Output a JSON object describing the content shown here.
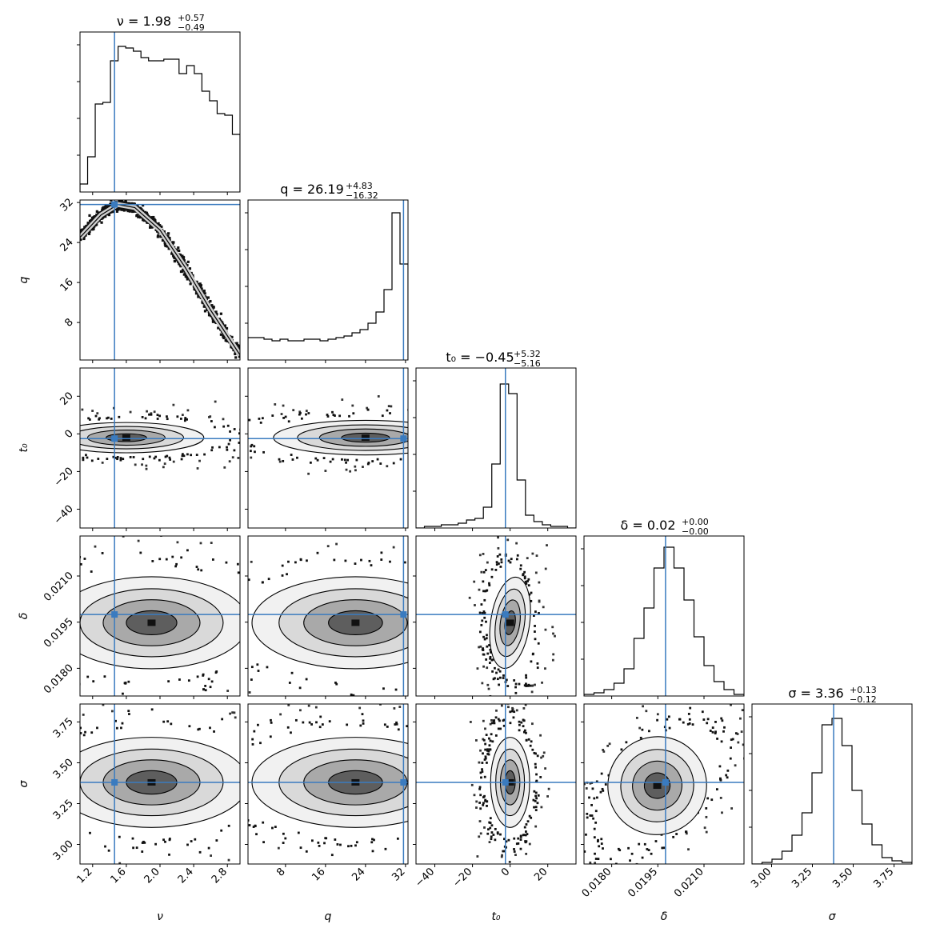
{
  "chart_data": {
    "type": "corner",
    "truth_color": "#3a7bbf",
    "parameters": [
      {
        "key": "nu",
        "symbol": "ν",
        "label": "ν",
        "range": [
          1.05,
          2.95
        ],
        "ticks": [
          1.2,
          1.6,
          2.0,
          2.4,
          2.8
        ],
        "tick_labels": [
          "1.2",
          "1.6",
          "2.0",
          "2.4",
          "2.8"
        ],
        "truth": 1.46,
        "title": {
          "lhs": "ν = 1.98",
          "plus": "+0.57",
          "minus": "−0.49"
        },
        "hist": [
          0.05,
          0.22,
          0.55,
          0.56,
          0.82,
          0.91,
          0.9,
          0.88,
          0.84,
          0.82,
          0.82,
          0.83,
          0.83,
          0.74,
          0.79,
          0.74,
          0.63,
          0.57,
          0.49,
          0.48,
          0.36
        ]
      },
      {
        "key": "q",
        "symbol": "q",
        "label": "q",
        "range": [
          0.5,
          32.5
        ],
        "ticks": [
          8,
          16,
          24,
          32
        ],
        "tick_labels": [
          "8",
          "16",
          "24",
          "32"
        ],
        "truth": 31.6,
        "title": {
          "lhs": "q = 26.19",
          "plus": "+4.83",
          "minus": "−16.32"
        },
        "hist": [
          0.14,
          0.14,
          0.13,
          0.12,
          0.13,
          0.12,
          0.12,
          0.13,
          0.13,
          0.12,
          0.13,
          0.14,
          0.15,
          0.17,
          0.19,
          0.23,
          0.3,
          0.44,
          0.92,
          0.6
        ]
      },
      {
        "key": "t0",
        "symbol": "t₀",
        "label": "t₀",
        "range": [
          -50,
          35
        ],
        "ticks": [
          -40,
          -20,
          0,
          20
        ],
        "tick_labels": [
          "−40",
          "−20",
          "0",
          "20"
        ],
        "truth": -2.5,
        "title": {
          "lhs": "t₀ = −0.45",
          "plus": "+5.32",
          "minus": "−5.16"
        },
        "hist": [
          0.0,
          0.01,
          0.01,
          0.02,
          0.02,
          0.03,
          0.05,
          0.06,
          0.13,
          0.4,
          0.9,
          0.84,
          0.3,
          0.08,
          0.04,
          0.02,
          0.01,
          0.01,
          0.0
        ]
      },
      {
        "key": "delta",
        "symbol": "δ",
        "label": "δ",
        "range": [
          0.0171,
          0.0223
        ],
        "ticks": [
          0.018,
          0.0195,
          0.021
        ],
        "tick_labels": [
          "0.0180",
          "0.0195",
          "0.0210"
        ],
        "truth": 0.01975,
        "title": {
          "lhs": "δ = 0.02",
          "plus": "+0.00",
          "minus": "−0.00"
        },
        "hist": [
          0.01,
          0.02,
          0.04,
          0.08,
          0.17,
          0.36,
          0.55,
          0.8,
          0.93,
          0.8,
          0.6,
          0.37,
          0.19,
          0.09,
          0.04,
          0.01
        ]
      },
      {
        "key": "sigma",
        "symbol": "σ",
        "label": "σ",
        "range": [
          2.88,
          3.86
        ],
        "ticks": [
          3.0,
          3.25,
          3.5,
          3.75
        ],
        "tick_labels": [
          "3.00",
          "3.25",
          "3.50",
          "3.75"
        ],
        "truth": 3.38,
        "title": {
          "lhs": "σ = 3.36",
          "plus": "+0.13",
          "minus": "−0.12"
        },
        "hist": [
          0.0,
          0.01,
          0.03,
          0.08,
          0.18,
          0.32,
          0.57,
          0.87,
          0.91,
          0.74,
          0.46,
          0.25,
          0.12,
          0.04,
          0.02,
          0.01
        ]
      }
    ],
    "pairs": [
      {
        "x": "nu",
        "y": "q",
        "shape": "curve",
        "curve": [
          [
            1.05,
            25.0
          ],
          [
            1.3,
            29.5
          ],
          [
            1.5,
            31.6
          ],
          [
            1.7,
            31.0
          ],
          [
            2.0,
            26.5
          ],
          [
            2.3,
            19.0
          ],
          [
            2.6,
            10.5
          ],
          [
            2.95,
            1.5
          ]
        ],
        "width": 1.4
      },
      {
        "x": "nu",
        "y": "t0",
        "shape": "blob",
        "mx": 1.6,
        "my": -2.0,
        "sx": 0.4,
        "sy": 3.5,
        "rho": 0.0
      },
      {
        "x": "q",
        "y": "t0",
        "shape": "blob",
        "mx": 24.0,
        "my": -2.0,
        "sx": 8.0,
        "sy": 4.0,
        "rho": 0.0
      },
      {
        "x": "t0",
        "y": "delta",
        "shape": "blob",
        "mx": 0.0,
        "my": 0.01948,
        "sx": 4.5,
        "sy": 0.00065,
        "rho": 0.15
      },
      {
        "x": "nu",
        "y": "delta",
        "shape": "blob",
        "mx": 1.9,
        "my": 0.01948,
        "sx": 0.5,
        "sy": 0.00065,
        "rho": 0.0
      },
      {
        "x": "q",
        "y": "delta",
        "shape": "blob",
        "mx": 22.0,
        "my": 0.01948,
        "sx": 9.0,
        "sy": 0.00065,
        "rho": 0.0
      },
      {
        "x": "nu",
        "y": "sigma",
        "shape": "blob",
        "mx": 1.9,
        "my": 3.38,
        "sx": 0.5,
        "sy": 0.12,
        "rho": 0.0
      },
      {
        "x": "q",
        "y": "sigma",
        "shape": "blob",
        "mx": 22.0,
        "my": 3.38,
        "sx": 9.0,
        "sy": 0.12,
        "rho": 0.0
      },
      {
        "x": "t0",
        "y": "sigma",
        "shape": "blob",
        "mx": 0.0,
        "my": 3.38,
        "sx": 4.5,
        "sy": 0.12,
        "rho": 0.0
      },
      {
        "x": "delta",
        "y": "sigma",
        "shape": "blob",
        "mx": 0.01948,
        "my": 3.36,
        "sx": 0.0007,
        "sy": 0.13,
        "rho": -0.55
      }
    ]
  }
}
